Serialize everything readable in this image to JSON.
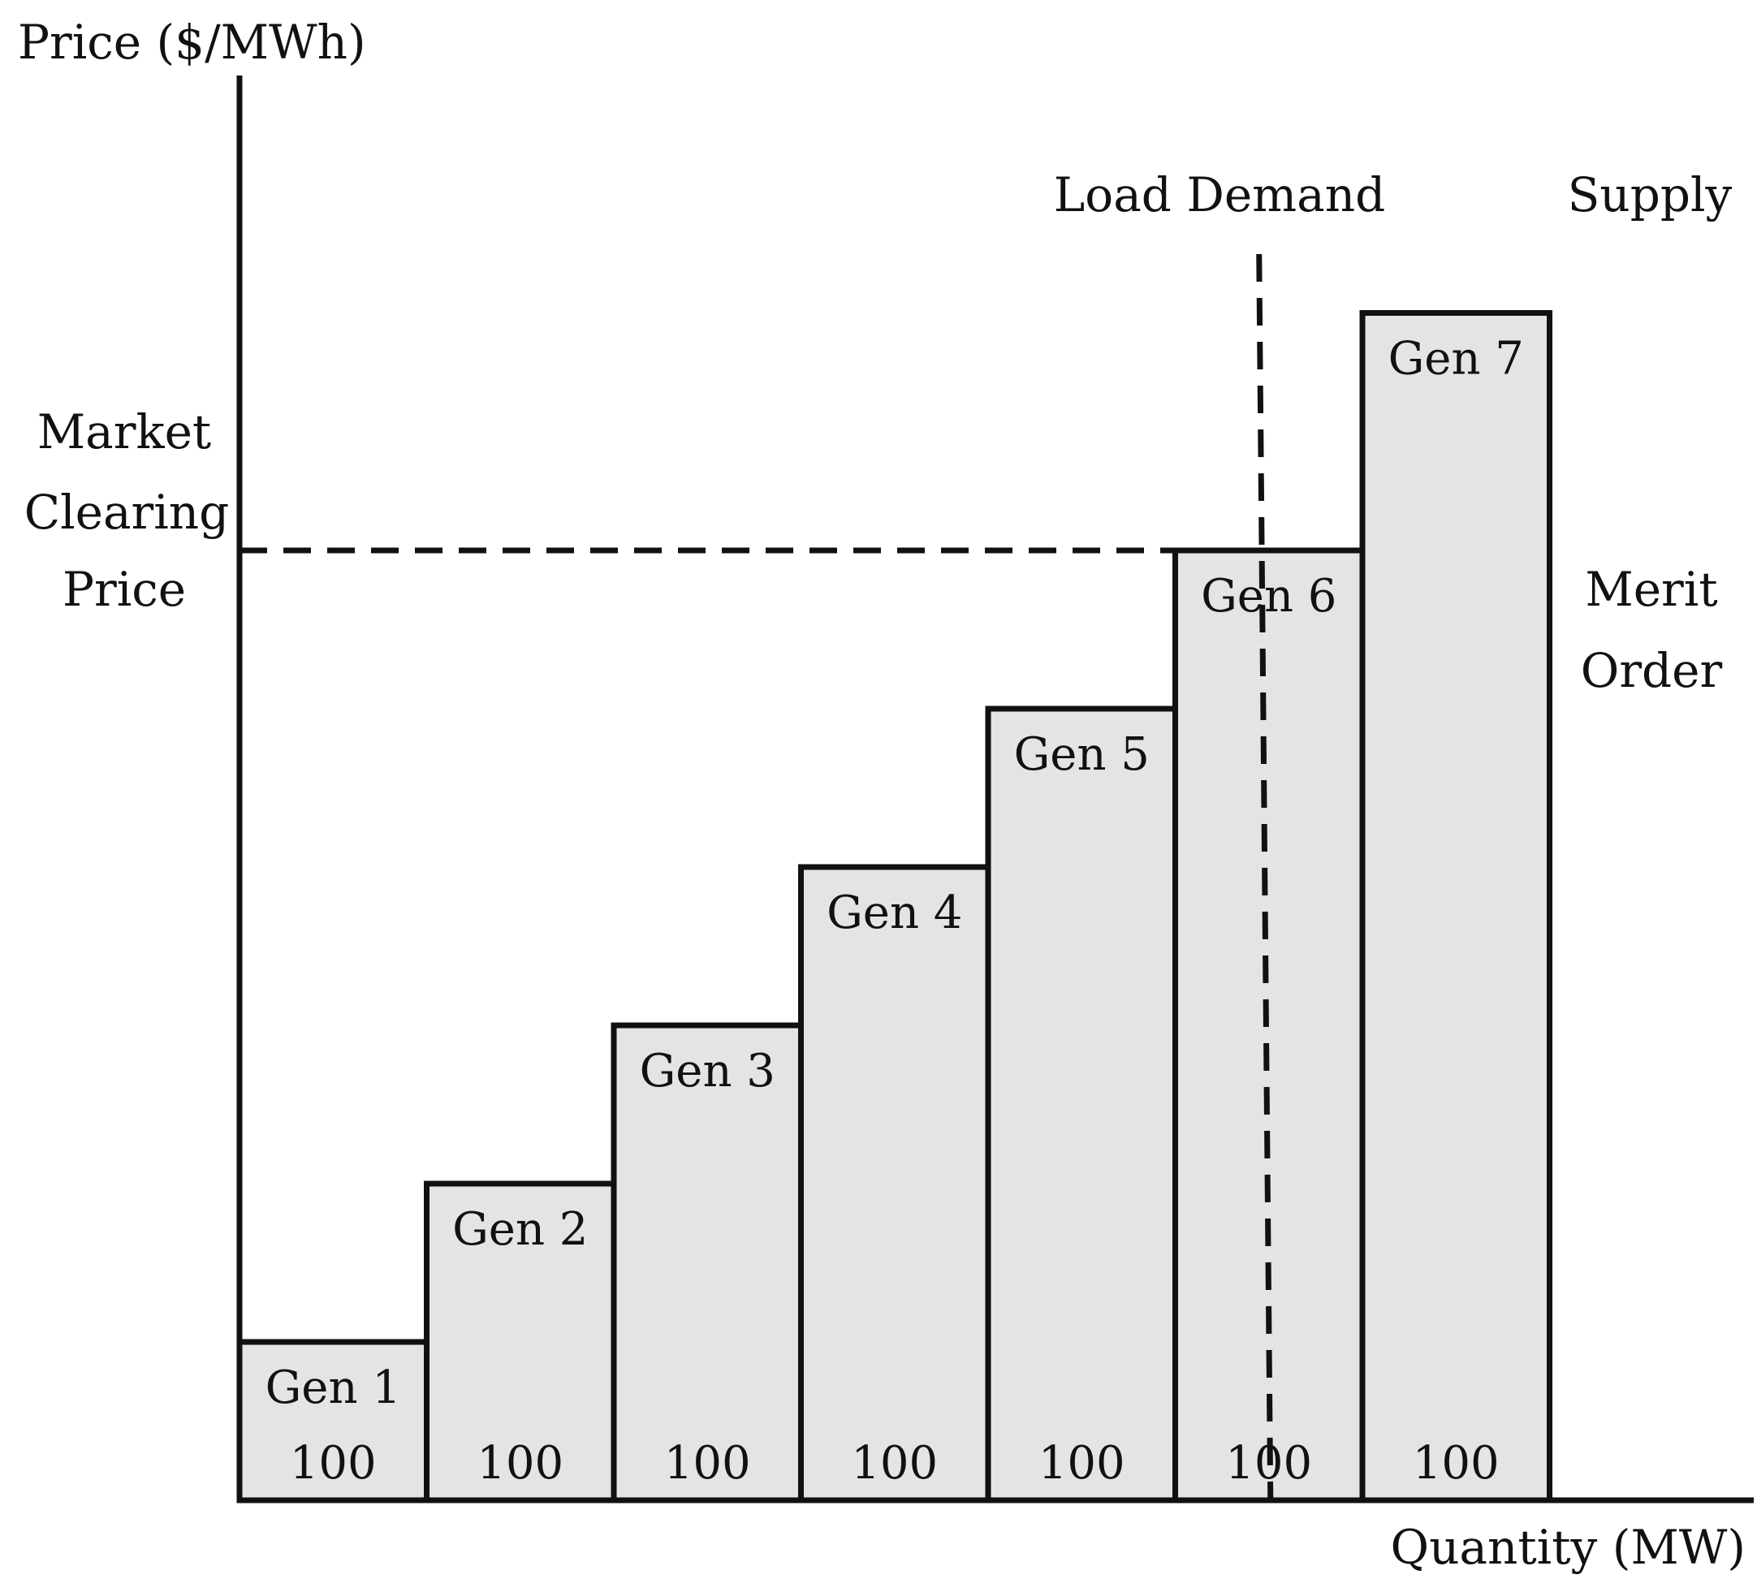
{
  "chart_data": {
    "type": "bar",
    "xlabel": "Quantity (MW)",
    "ylabel": "Price ($/MWh)",
    "categories": [
      "Gen 1",
      "Gen 2",
      "Gen 3",
      "Gen 4",
      "Gen 5",
      "Gen 6",
      "Gen 7"
    ],
    "capacities": [
      "100",
      "100",
      "100",
      "100",
      "100",
      "100",
      "100"
    ],
    "relative_price": [
      1,
      2,
      3,
      4,
      5,
      6,
      7.5
    ],
    "bar_color": "#e4e4e4",
    "line_color": "#111111",
    "supply_label": "Supply",
    "merit_order_label": [
      "Merit",
      "Order"
    ],
    "demand": {
      "label": "Load Demand",
      "position_generator": 6,
      "position_fraction": 0.5
    },
    "clearing_price": {
      "label_lines": [
        "Market",
        "Clearing",
        "Price"
      ],
      "at_generator": 6
    }
  }
}
